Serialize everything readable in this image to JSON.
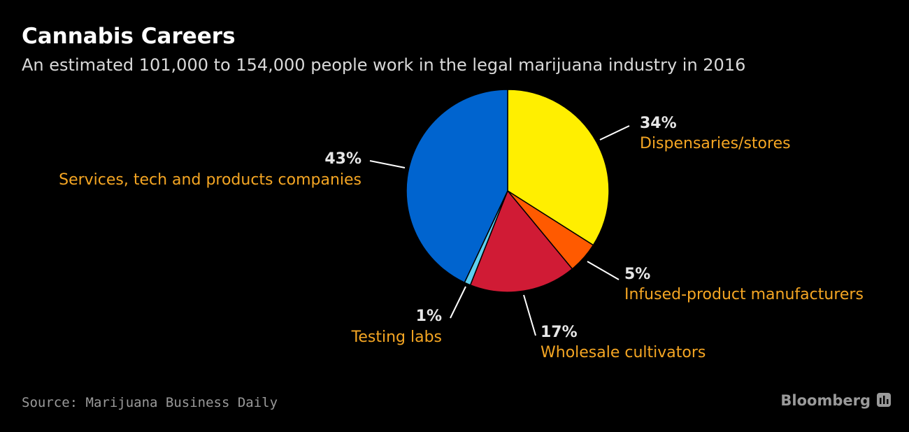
{
  "chart_data": {
    "type": "pie",
    "title": "Cannabis Careers",
    "subtitle": "An estimated 101,000 to 154,000 people work in the legal marijuana industry in 2016",
    "slices": [
      {
        "name": "Dispensaries/stores",
        "value": 34,
        "label": "34%",
        "color": "#ffef00"
      },
      {
        "name": "Infused-product manufacturers",
        "value": 5,
        "label": "5%",
        "color": "#ff5a00"
      },
      {
        "name": "Wholesale cultivators",
        "value": 17,
        "label": "17%",
        "color": "#d01b35"
      },
      {
        "name": "Testing labs",
        "value": 1,
        "label": "1%",
        "color": "#5dcff0"
      },
      {
        "name": "Services, tech and products companies",
        "value": 43,
        "label": "43%",
        "color": "#0064cf"
      }
    ],
    "start": "12 o'clock",
    "direction": "clockwise"
  },
  "footer": {
    "source": "Source: Marijuana Business Daily",
    "brand": "Bloomberg"
  }
}
